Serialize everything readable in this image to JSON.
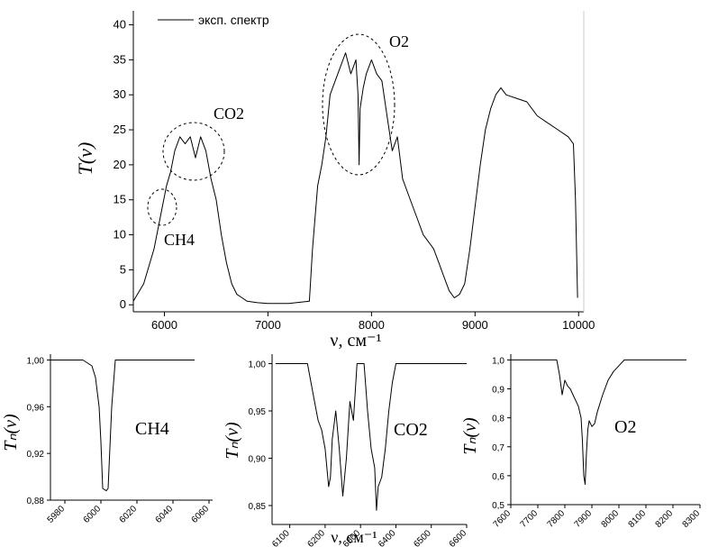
{
  "chart_data": [
    {
      "type": "line",
      "legend": "эксп. спектр",
      "legend_position": "top-left",
      "ylabel": "T(ν)",
      "xlabel": "ν, см⁻¹",
      "xlim": [
        5700,
        10050
      ],
      "ylim": [
        -1,
        42
      ],
      "xticks": [
        6000,
        7000,
        8000,
        9000,
        10000
      ],
      "yticks": [
        0,
        5,
        10,
        15,
        20,
        25,
        30,
        35,
        40
      ],
      "annotations": [
        "CH4",
        "CO2",
        "O2"
      ],
      "series": [
        {
          "name": "эксп. спектр",
          "x": [
            5700,
            5800,
            5900,
            5980,
            6020,
            6060,
            6100,
            6150,
            6200,
            6250,
            6300,
            6350,
            6400,
            6450,
            6500,
            6550,
            6600,
            6650,
            6700,
            6750,
            6800,
            6900,
            7000,
            7200,
            7400,
            7430,
            7480,
            7520,
            7560,
            7600,
            7650,
            7700,
            7750,
            7800,
            7850,
            7870,
            7880,
            7890,
            7920,
            7950,
            8000,
            8050,
            8100,
            8150,
            8200,
            8250,
            8300,
            8350,
            8400,
            8450,
            8500,
            8550,
            8600,
            8650,
            8700,
            8750,
            8800,
            8850,
            8900,
            8950,
            9000,
            9050,
            9100,
            9150,
            9200,
            9250,
            9300,
            9400,
            9500,
            9600,
            9700,
            9800,
            9900,
            9950,
            9970,
            9990
          ],
          "y": [
            0.5,
            3,
            8,
            14,
            17,
            19,
            22,
            24,
            23,
            24,
            21,
            24,
            22,
            18,
            15,
            10,
            6,
            3,
            1.5,
            1,
            0.5,
            0.3,
            0.2,
            0.2,
            0.5,
            8,
            17,
            20,
            24,
            30,
            32,
            34,
            36,
            33,
            35,
            30,
            20,
            28,
            31,
            33,
            35,
            33,
            32,
            27,
            22,
            24,
            18,
            16,
            14,
            12,
            10,
            9,
            8,
            6,
            4,
            2,
            1,
            1.5,
            3,
            8,
            14,
            20,
            25,
            28,
            30,
            31,
            30,
            29.5,
            29,
            27,
            26,
            25,
            24,
            23,
            15,
            1
          ]
        }
      ]
    },
    {
      "type": "line",
      "annotation": "CH4",
      "ylabel": "Tₙ(ν)",
      "xlim": [
        5972,
        6062
      ],
      "ylim": [
        0.88,
        1.005
      ],
      "xticks": [
        5980,
        6000,
        6020,
        6040,
        6060
      ],
      "yticks": [
        0.88,
        0.92,
        0.96,
        1.0
      ],
      "ytick_labels": [
        "0,88",
        "0,92",
        "0,96",
        "1,00"
      ],
      "series": [
        {
          "x": [
            5972,
            5990,
            5995,
            5997,
            5999,
            6000,
            6001,
            6003,
            6004,
            6006,
            6008,
            6052
          ],
          "y": [
            1.0,
            1.0,
            0.995,
            0.985,
            0.96,
            0.93,
            0.89,
            0.888,
            0.89,
            0.96,
            1.0,
            1.0
          ]
        }
      ]
    },
    {
      "type": "line",
      "annotation": "CO2",
      "ylabel": "Tₙ(ν)",
      "xlabel": "ν, см⁻¹",
      "xlim": [
        6050,
        6600
      ],
      "ylim": [
        0.83,
        1.01
      ],
      "xticks": [
        6100,
        6200,
        6300,
        6400,
        6500,
        6600
      ],
      "yticks": [
        0.85,
        0.9,
        0.95,
        1.0
      ],
      "ytick_labels": [
        "0,85",
        "0,90",
        "0,95",
        "1,00"
      ],
      "series": [
        {
          "x": [
            6060,
            6150,
            6160,
            6170,
            6180,
            6190,
            6200,
            6210,
            6215,
            6220,
            6230,
            6240,
            6250,
            6260,
            6270,
            6280,
            6290,
            6300,
            6310,
            6320,
            6330,
            6340,
            6345,
            6350,
            6360,
            6370,
            6380,
            6390,
            6400,
            6600
          ],
          "y": [
            1.0,
            1.0,
            0.98,
            0.96,
            0.94,
            0.93,
            0.91,
            0.87,
            0.88,
            0.92,
            0.95,
            0.91,
            0.86,
            0.9,
            0.96,
            0.94,
            1.0,
            1.0,
            1.0,
            0.95,
            0.91,
            0.89,
            0.845,
            0.87,
            0.88,
            0.91,
            0.95,
            0.98,
            1.0,
            1.0
          ]
        }
      ]
    },
    {
      "type": "line",
      "annotation": "O2",
      "ylabel": "Tₙ(ν)",
      "xlim": [
        7600,
        8300
      ],
      "ylim": [
        0.5,
        1.02
      ],
      "xticks": [
        7600,
        7700,
        7800,
        7900,
        8000,
        8100,
        8200,
        8300
      ],
      "yticks": [
        0.5,
        0.6,
        0.7,
        0.8,
        0.9,
        1.0
      ],
      "ytick_labels": [
        "0,5",
        "0,6",
        "0,7",
        "0,8",
        "0,9",
        "1,0"
      ],
      "series": [
        {
          "x": [
            7600,
            7770,
            7780,
            7790,
            7800,
            7810,
            7820,
            7830,
            7840,
            7850,
            7860,
            7865,
            7870,
            7875,
            7880,
            7885,
            7890,
            7900,
            7910,
            7920,
            7940,
            7960,
            7980,
            8000,
            8020,
            8250
          ],
          "y": [
            1.0,
            1.0,
            0.95,
            0.88,
            0.93,
            0.91,
            0.9,
            0.88,
            0.86,
            0.84,
            0.8,
            0.72,
            0.6,
            0.57,
            0.68,
            0.76,
            0.79,
            0.77,
            0.78,
            0.82,
            0.88,
            0.93,
            0.96,
            0.98,
            1.0,
            1.0
          ]
        }
      ]
    }
  ]
}
